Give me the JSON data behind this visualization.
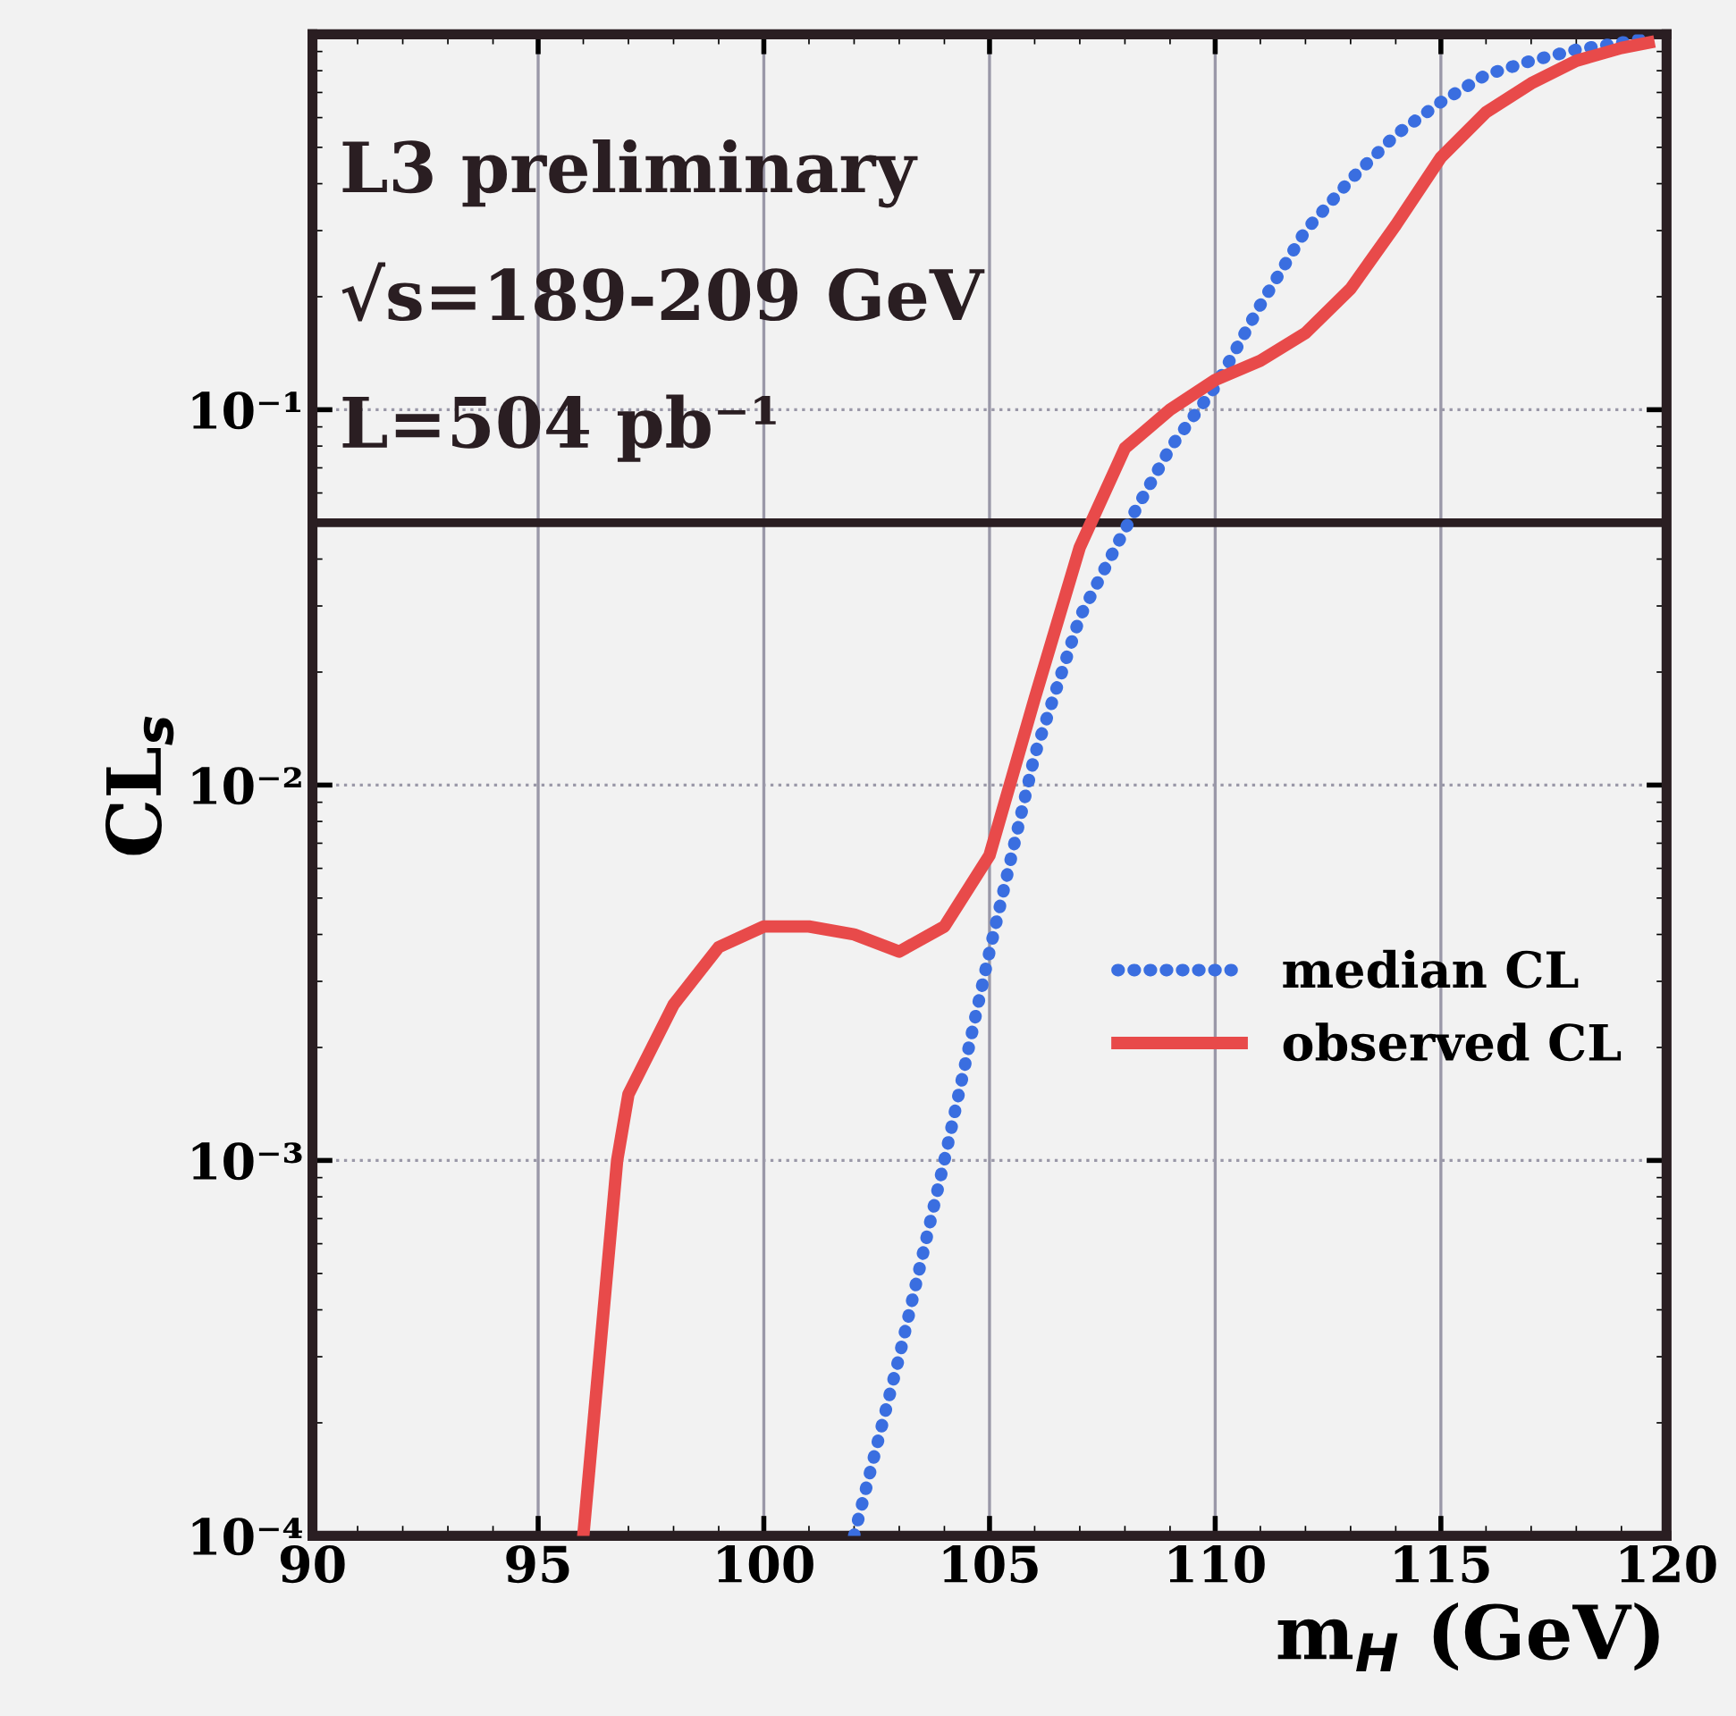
{
  "chart_data": {
    "type": "line",
    "xlabel": "m$_{H}$ (GeV)",
    "ylabel": "CL$_{s}$",
    "annotations": [
      "L3 preliminary",
      "√s=189-209 GeV",
      "L=504 pb⁻¹"
    ],
    "log": "y",
    "xlim": [
      90,
      120
    ],
    "xticks": [
      90,
      95,
      100,
      105,
      110,
      115,
      120
    ],
    "ylim": [
      0.0001,
      1
    ],
    "yticks": [
      {
        "value": 0.0001,
        "label": "10⁻⁴"
      },
      {
        "value": 0.001,
        "label": "10⁻³"
      },
      {
        "value": 0.01,
        "label": "10⁻²"
      },
      {
        "value": 0.1,
        "label": "10⁻¹"
      },
      {
        "value": 1,
        "label": null
      }
    ],
    "grid": true,
    "legend": "lower right",
    "ref_lines": [
      {
        "axis": "y",
        "value": 0.05,
        "color": "#2a1e22",
        "line_style": "solid"
      }
    ],
    "series": [
      {
        "name": "median CL",
        "color": "#3a6ee0",
        "line_style": "dotted",
        "x": [
          102,
          103,
          104,
          105,
          106,
          107,
          108,
          109,
          110,
          111,
          112,
          113,
          114,
          115,
          116,
          117,
          118,
          119,
          119.6
        ],
        "values": [
          0.0001,
          0.0003,
          0.001,
          0.0036,
          0.012,
          0.028,
          0.048,
          0.079,
          0.115,
          0.19,
          0.3,
          0.41,
          0.54,
          0.66,
          0.78,
          0.85,
          0.91,
          0.95,
          0.98
        ]
      },
      {
        "name": "observed CL",
        "color": "#e84a4a",
        "line_style": "solid",
        "x": [
          96,
          96.75,
          97,
          98,
          99,
          100,
          101,
          102,
          103,
          104,
          105,
          106,
          107,
          108,
          109,
          110,
          111,
          112,
          113,
          114,
          115,
          116,
          117,
          118,
          119,
          119.6
        ],
        "values": [
          0.0001,
          0.001,
          0.0015,
          0.0026,
          0.0037,
          0.0042,
          0.0042,
          0.004,
          0.0036,
          0.0042,
          0.0065,
          0.017,
          0.043,
          0.079,
          0.1,
          0.12,
          0.135,
          0.16,
          0.21,
          0.31,
          0.47,
          0.62,
          0.74,
          0.85,
          0.92,
          0.95
        ]
      }
    ]
  }
}
